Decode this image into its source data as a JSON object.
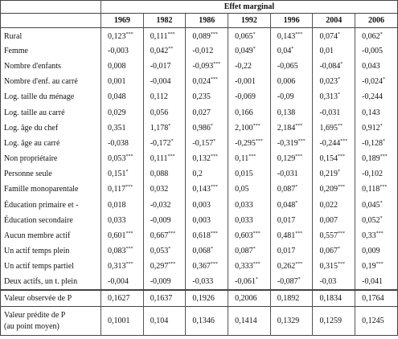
{
  "table": {
    "group_header": "Effet marginal",
    "columns": [
      "1969",
      "1982",
      "1986",
      "1992",
      "1996",
      "2004",
      "2006"
    ],
    "rows": [
      {
        "label": "Rural",
        "cells": [
          {
            "text": "0,123",
            "sup": "***"
          },
          {
            "text": "0,111",
            "sup": "***"
          },
          {
            "text": "0,089",
            "sup": "***"
          },
          {
            "text": "0,065",
            "sup": "*"
          },
          {
            "text": "0,143",
            "sup": "***"
          },
          {
            "text": "0,074",
            "sup": "*"
          },
          {
            "text": "0,062",
            "sup": "*"
          }
        ]
      },
      {
        "label": "Femme",
        "cells": [
          "-0,003",
          {
            "text": "0,042",
            "sup": "**"
          },
          "-0,012",
          {
            "text": "0,049",
            "sup": "*"
          },
          {
            "text": "0,04",
            "sup": "*"
          },
          "0,01",
          "-0,005"
        ]
      },
      {
        "label": "Nombre d'enfants",
        "cells": [
          "0,008",
          "-0,017",
          {
            "text": "-0,093",
            "sup": "***"
          },
          "-0,22",
          "-0,065",
          {
            "text": "-0,084",
            "sup": "*"
          },
          "0,043"
        ]
      },
      {
        "label": "Nombre d'enf. au carré",
        "cells": [
          "0,001",
          "-0,004",
          {
            "text": "0,024",
            "sup": "***"
          },
          "-0,001",
          "0,006",
          {
            "text": "0,023",
            "sup": "*"
          },
          {
            "text": "-0,024",
            "sup": "*"
          }
        ]
      },
      {
        "label": "Log. taille du ménage",
        "cells": [
          "0,048",
          "0,112",
          "0,235",
          "-0,069",
          "-0,09",
          {
            "text": "0,313",
            "sup": "*"
          },
          "-0,244"
        ]
      },
      {
        "label": "Log. taille au carré",
        "cells": [
          "0,029",
          "0,056",
          "0,027",
          "0,166",
          "0,138",
          "-0,031",
          "0,143"
        ]
      },
      {
        "label": "Log. âge du chef",
        "cells": [
          "0,351",
          {
            "text": "1,178",
            "sup": "*"
          },
          {
            "text": "0,986",
            "sup": "*"
          },
          {
            "text": "2,100",
            "sup": "***"
          },
          {
            "text": "2,184",
            "sup": "***"
          },
          {
            "text": "1,695",
            "sup": "**"
          },
          {
            "text": "0,912",
            "sup": "*"
          }
        ]
      },
      {
        "label": "Log. âge au carré",
        "cells": [
          "-0,038",
          {
            "text": "-0,172",
            "sup": "*"
          },
          {
            "text": "-0,157",
            "sup": "*"
          },
          {
            "text": "-0,295",
            "sup": "***"
          },
          {
            "text": "-0,319",
            "sup": "***"
          },
          {
            "text": "-0,244",
            "sup": "***"
          },
          {
            "text": "-0,128",
            "sup": "*"
          }
        ]
      },
      {
        "label": "Non propriétaire",
        "cells": [
          {
            "text": "0,053",
            "sup": "***"
          },
          {
            "text": "0,111",
            "sup": "***"
          },
          {
            "text": "0,132",
            "sup": "***"
          },
          {
            "text": "0,11",
            "sup": "***"
          },
          {
            "text": "0,129",
            "sup": "***"
          },
          {
            "text": "0,154",
            "sup": "***"
          },
          {
            "text": "0,189",
            "sup": "***"
          }
        ]
      },
      {
        "label": "Personne seule",
        "cells": [
          {
            "text": "0,151",
            "sup": "*"
          },
          "0,088",
          "0,2",
          "0,015",
          "-0,031",
          {
            "text": "0,219",
            "sup": "*"
          },
          "-0,102"
        ]
      },
      {
        "label": "Famille monoparentale",
        "cells": [
          {
            "text": "0,117",
            "sup": "***"
          },
          "0,032",
          {
            "text": "0,143",
            "sup": "***"
          },
          "0,05",
          {
            "text": "0,087",
            "sup": "*"
          },
          {
            "text": "0,209",
            "sup": "***"
          },
          {
            "text": "0,118",
            "sup": "***"
          }
        ]
      },
      {
        "label": "Éducation primaire et -",
        "cells": [
          "0,018",
          "-0,032",
          "0,003",
          "0,033",
          {
            "text": "0,048",
            "sup": "*"
          },
          "0,022",
          {
            "text": "0,045",
            "sup": "*"
          }
        ]
      },
      {
        "label": "Éducation secondaire",
        "cells": [
          "0,033",
          "-0,009",
          "0,003",
          "0,033",
          "0,017",
          "0,007",
          {
            "text": "0,052",
            "sup": "*"
          }
        ]
      },
      {
        "label": "Aucun membre actif",
        "cells": [
          {
            "text": "0,601",
            "sup": "***"
          },
          {
            "text": "0,667",
            "sup": "***"
          },
          {
            "text": "0,618",
            "sup": "***"
          },
          {
            "text": "0,603",
            "sup": "***"
          },
          {
            "text": "0,481",
            "sup": "***"
          },
          {
            "text": "0,557",
            "sup": "***"
          },
          {
            "text": "0,33",
            "sup": "***"
          }
        ]
      },
      {
        "label": "Un actif temps plein",
        "cells": [
          {
            "text": "0,083",
            "sup": "***"
          },
          {
            "text": "0,053",
            "sup": "*"
          },
          {
            "text": "0,068",
            "sup": "*"
          },
          {
            "text": "0,087",
            "sup": "*"
          },
          "0,017",
          {
            "text": "0,067",
            "sup": "*"
          },
          "0,009"
        ]
      },
      {
        "label": "Un actif temps partiel",
        "cells": [
          {
            "text": "0,313",
            "sup": "***"
          },
          {
            "text": "0,297",
            "sup": "***"
          },
          {
            "text": "0,367",
            "sup": "***"
          },
          {
            "text": "0,333",
            "sup": "***"
          },
          {
            "text": "0,262",
            "sup": "***"
          },
          {
            "text": "0,315",
            "sup": "***"
          },
          {
            "text": "0,19",
            "sup": "***"
          }
        ]
      },
      {
        "label": "Deux actifs, un t. plein",
        "cells": [
          "-0,004",
          "-0,009",
          "-0,033",
          {
            "text": "-0,061",
            "sup": "*"
          },
          {
            "text": "-0,087",
            "sup": "*"
          },
          "-0,03",
          "-0,041"
        ]
      }
    ],
    "summary_rows": [
      {
        "label": [
          "Valeur observée de P"
        ],
        "cells": [
          "0,1627",
          "0,1637",
          "0,1926",
          "0,2006",
          "0,1892",
          "0,1834",
          "0,1764"
        ]
      },
      {
        "label": [
          "Valeur prédite de P",
          "(au point moyen)"
        ],
        "cells": [
          "0,1001",
          "0,104",
          "0,1346",
          "0,1414",
          "0,1329",
          "0,1259",
          "0,1245"
        ]
      }
    ]
  }
}
